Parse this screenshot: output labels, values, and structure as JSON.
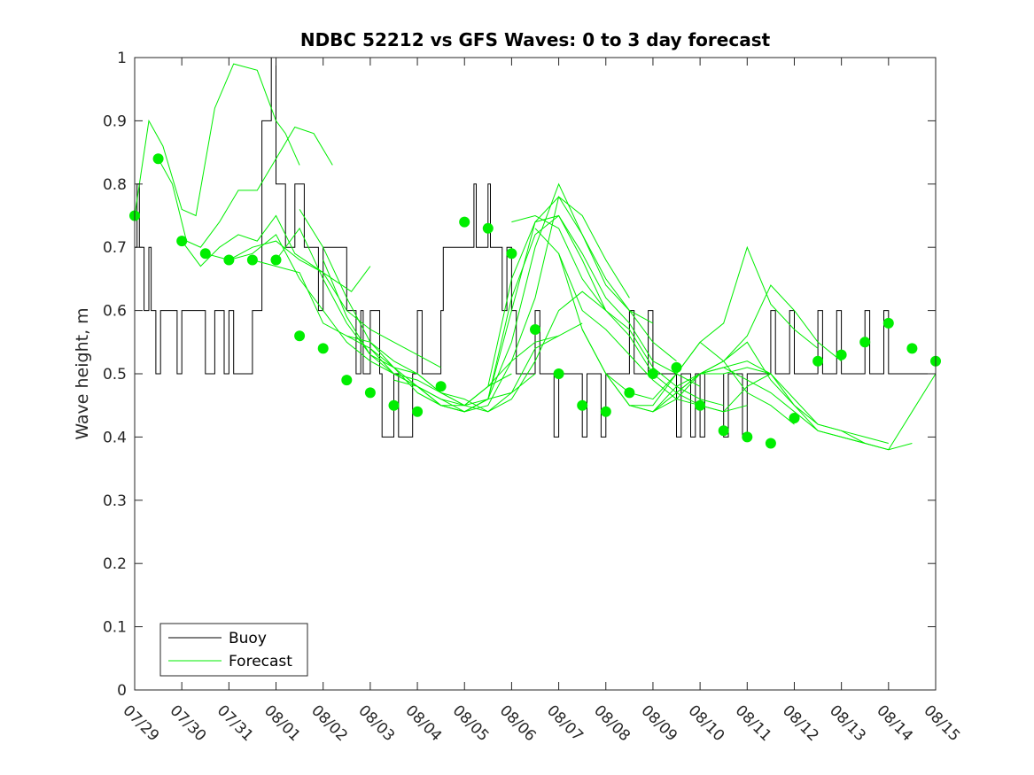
{
  "chart_data": {
    "type": "line",
    "title": "NDBC 52212 vs GFS Waves: 0 to 3 day forecast",
    "xlabel": "",
    "ylabel": "Wave height, m",
    "ylim": [
      0,
      1
    ],
    "xlim": [
      0,
      17
    ],
    "x_unit": "days since 07/29",
    "yticks": [
      0,
      0.1,
      0.2,
      0.3,
      0.4,
      0.5,
      0.6,
      0.7,
      0.8,
      0.9,
      1
    ],
    "ytick_labels": [
      "0",
      "0.1",
      "0.2",
      "0.3",
      "0.4",
      "0.5",
      "0.6",
      "0.7",
      "0.8",
      "0.9",
      "1"
    ],
    "xtick_labels": [
      "07/29",
      "07/30",
      "07/31",
      "08/01",
      "08/02",
      "08/03",
      "08/04",
      "08/05",
      "08/06",
      "08/07",
      "08/08",
      "08/09",
      "08/10",
      "08/11",
      "08/12",
      "08/13",
      "08/14",
      "08/15"
    ],
    "grid": false,
    "legend": {
      "position": "bottom-left",
      "entries": [
        "Buoy",
        "Forecast"
      ]
    },
    "colors": {
      "buoy": "#000000",
      "forecast": "#00ee00"
    },
    "series": [
      {
        "name": "Buoy",
        "style": "stairs",
        "x": [
          0,
          0.05,
          0.1,
          0.2,
          0.3,
          0.35,
          0.45,
          0.55,
          0.9,
          1.0,
          1.5,
          1.7,
          1.9,
          2.0,
          2.1,
          2.5,
          2.7,
          2.9,
          3.0,
          3.2,
          3.4,
          3.6,
          3.9,
          4.0,
          4.5,
          4.7,
          4.8,
          4.85,
          5.0,
          5.2,
          5.25,
          5.5,
          5.6,
          5.9,
          6.0,
          6.1,
          6.5,
          6.55,
          7.2,
          7.25,
          7.5,
          7.55,
          7.8,
          7.9,
          8.0,
          8.1,
          8.5,
          8.6,
          8.9,
          9.0,
          9.5,
          9.6,
          9.9,
          10.0,
          10.5,
          10.6,
          10.9,
          11.0,
          11.5,
          11.6,
          11.8,
          11.9,
          12.0,
          12.1,
          12.5,
          12.6,
          12.9,
          13.0,
          13.5,
          13.6,
          13.9,
          14.0,
          14.5,
          14.6,
          14.9,
          15.0,
          15.5,
          15.6,
          15.9,
          16.0,
          16.5,
          16.6,
          17.0
        ],
        "y": [
          0.7,
          0.8,
          0.7,
          0.6,
          0.7,
          0.6,
          0.5,
          0.6,
          0.5,
          0.6,
          0.5,
          0.6,
          0.5,
          0.6,
          0.5,
          0.6,
          0.9,
          1.0,
          0.8,
          0.7,
          0.8,
          0.7,
          0.6,
          0.7,
          0.6,
          0.5,
          0.6,
          0.5,
          0.6,
          0.5,
          0.4,
          0.5,
          0.4,
          0.5,
          0.6,
          0.5,
          0.6,
          0.7,
          0.8,
          0.7,
          0.8,
          0.7,
          0.6,
          0.7,
          0.6,
          0.5,
          0.6,
          0.5,
          0.4,
          0.5,
          0.4,
          0.5,
          0.4,
          0.5,
          0.6,
          0.5,
          0.6,
          0.5,
          0.4,
          0.5,
          0.4,
          0.5,
          0.4,
          0.5,
          0.4,
          0.5,
          0.4,
          0.5,
          0.6,
          0.5,
          0.6,
          0.5,
          0.6,
          0.5,
          0.6,
          0.5,
          0.6,
          0.5,
          0.6,
          0.5,
          0.5,
          0.5,
          0.5
        ]
      },
      {
        "name": "Forecast",
        "style": "lines",
        "runs": [
          {
            "x": [
              0.0,
              0.3,
              0.6,
              1.0,
              1.3,
              1.7,
              2.1,
              2.6,
              3.0,
              3.2,
              3.5
            ],
            "y": [
              0.75,
              0.9,
              0.86,
              0.76,
              0.75,
              0.92,
              0.99,
              0.98,
              0.9,
              0.88,
              0.83
            ]
          },
          {
            "x": [
              0.5,
              0.8,
              1.1,
              1.4,
              1.8,
              2.2,
              2.6,
              3.0,
              3.4,
              3.8,
              4.2
            ],
            "y": [
              0.84,
              0.8,
              0.71,
              0.7,
              0.74,
              0.79,
              0.79,
              0.84,
              0.89,
              0.88,
              0.83
            ]
          },
          {
            "x": [
              1.0,
              1.4,
              1.8,
              2.2,
              2.6,
              3.0,
              3.4,
              3.8,
              4.2,
              4.6,
              5.0
            ],
            "y": [
              0.71,
              0.67,
              0.7,
              0.72,
              0.71,
              0.75,
              0.69,
              0.67,
              0.65,
              0.63,
              0.67
            ]
          },
          {
            "x": [
              1.5,
              2.0,
              2.5,
              3.0,
              3.5,
              4.0,
              4.5,
              5.0,
              5.5,
              6.0,
              6.5
            ],
            "y": [
              0.69,
              0.68,
              0.7,
              0.71,
              0.68,
              0.66,
              0.6,
              0.57,
              0.55,
              0.53,
              0.51
            ]
          },
          {
            "x": [
              2.0,
              2.5,
              3.0,
              3.5,
              4.0,
              4.5,
              5.0,
              5.5,
              6.0,
              6.5,
              7.0
            ],
            "y": [
              0.68,
              0.69,
              0.72,
              0.65,
              0.6,
              0.55,
              0.52,
              0.5,
              0.48,
              0.46,
              0.44
            ]
          },
          {
            "x": [
              2.5,
              3.0,
              3.5,
              4.0,
              4.5,
              5.0,
              5.5,
              6.0,
              6.5,
              7.0,
              7.5
            ],
            "y": [
              0.68,
              0.67,
              0.66,
              0.58,
              0.56,
              0.54,
              0.5,
              0.49,
              0.47,
              0.45,
              0.46
            ]
          },
          {
            "x": [
              3.0,
              3.5,
              4.0,
              4.5,
              5.0,
              5.5,
              6.0,
              6.5,
              7.0,
              7.5,
              8.0
            ],
            "y": [
              0.68,
              0.73,
              0.65,
              0.58,
              0.53,
              0.51,
              0.47,
              0.45,
              0.45,
              0.48,
              0.5
            ]
          },
          {
            "x": [
              3.5,
              4.0,
              4.5,
              5.0,
              5.5,
              6.0,
              6.5,
              7.0,
              7.5,
              8.0,
              8.5
            ],
            "y": [
              0.76,
              0.7,
              0.62,
              0.55,
              0.51,
              0.48,
              0.45,
              0.44,
              0.46,
              0.47,
              0.5
            ]
          },
          {
            "x": [
              4.0,
              4.5,
              5.0,
              5.5,
              6.0,
              6.5,
              7.0,
              7.5,
              8.0,
              8.5,
              9.0
            ],
            "y": [
              0.68,
              0.59,
              0.53,
              0.5,
              0.48,
              0.46,
              0.45,
              0.48,
              0.52,
              0.55,
              0.56
            ]
          },
          {
            "x": [
              4.5,
              5.0,
              5.5,
              6.0,
              6.5,
              7.0,
              7.5,
              8.0,
              8.5,
              9.0,
              9.5
            ],
            "y": [
              0.56,
              0.55,
              0.52,
              0.5,
              0.47,
              0.46,
              0.44,
              0.47,
              0.54,
              0.56,
              0.58
            ]
          },
          {
            "x": [
              5.0,
              5.5,
              6.0,
              6.5,
              7.0,
              7.5,
              8.0,
              8.5,
              9.0,
              9.5,
              10.0
            ],
            "y": [
              0.54,
              0.51,
              0.5,
              0.47,
              0.45,
              0.44,
              0.46,
              0.52,
              0.6,
              0.63,
              0.6
            ]
          },
          {
            "x": [
              5.5,
              6.0,
              6.5,
              7.0,
              7.5,
              8.0,
              8.5,
              9.0,
              9.5,
              10.0,
              10.5
            ],
            "y": [
              0.49,
              0.48,
              0.45,
              0.44,
              0.45,
              0.52,
              0.62,
              0.78,
              0.75,
              0.68,
              0.62
            ]
          },
          {
            "x": [
              6.0,
              6.5,
              7.0,
              7.5,
              8.0,
              8.5,
              9.0,
              9.5,
              10.0,
              10.5,
              11.0
            ],
            "y": [
              0.47,
              0.45,
              0.44,
              0.46,
              0.55,
              0.7,
              0.8,
              0.72,
              0.65,
              0.6,
              0.58
            ]
          },
          {
            "x": [
              6.5,
              7.0,
              7.5,
              8.0,
              8.5,
              9.0,
              9.5,
              10.0,
              10.5,
              11.0,
              11.5
            ],
            "y": [
              0.45,
              0.44,
              0.46,
              0.6,
              0.74,
              0.78,
              0.72,
              0.64,
              0.6,
              0.55,
              0.52
            ]
          },
          {
            "x": [
              7.0,
              7.5,
              8.0,
              8.5,
              9.0,
              9.5,
              10.0,
              10.5,
              11.0,
              11.5,
              12.0
            ],
            "y": [
              0.44,
              0.46,
              0.62,
              0.72,
              0.75,
              0.69,
              0.62,
              0.58,
              0.52,
              0.5,
              0.48
            ]
          },
          {
            "x": [
              7.5,
              8.0,
              8.5,
              9.0,
              9.5,
              10.0,
              10.5,
              11.0,
              11.5,
              12.0,
              12.5
            ],
            "y": [
              0.48,
              0.65,
              0.74,
              0.75,
              0.68,
              0.6,
              0.57,
              0.51,
              0.48,
              0.46,
              0.45
            ]
          },
          {
            "x": [
              8.0,
              8.5,
              9.0,
              9.5,
              10.0,
              10.5,
              11.0,
              11.5,
              12.0,
              12.5,
              13.0
            ],
            "y": [
              0.74,
              0.75,
              0.73,
              0.65,
              0.6,
              0.56,
              0.5,
              0.47,
              0.45,
              0.44,
              0.45
            ]
          },
          {
            "x": [
              8.5,
              9.0,
              9.5,
              10.0,
              10.5,
              11.0,
              11.5,
              12.0,
              12.5,
              13.0,
              13.5
            ],
            "y": [
              0.73,
              0.69,
              0.6,
              0.57,
              0.53,
              0.49,
              0.46,
              0.45,
              0.44,
              0.48,
              0.5
            ]
          },
          {
            "x": [
              9.0,
              9.5,
              10.0,
              10.5,
              11.0,
              11.5,
              12.0,
              12.5,
              13.0,
              13.5,
              14.0
            ],
            "y": [
              0.69,
              0.57,
              0.5,
              0.47,
              0.46,
              0.5,
              0.55,
              0.52,
              0.47,
              0.45,
              0.42
            ]
          },
          {
            "x": [
              9.5,
              10.0,
              10.5,
              11.0,
              11.5,
              12.0,
              12.5,
              13.0,
              13.5,
              14.0,
              14.5
            ],
            "y": [
              0.57,
              0.5,
              0.45,
              0.45,
              0.5,
              0.55,
              0.58,
              0.7,
              0.61,
              0.57,
              0.54
            ]
          },
          {
            "x": [
              10.0,
              10.5,
              11.0,
              11.5,
              12.0,
              12.5,
              13.0,
              13.5,
              14.0,
              14.5,
              15.0
            ],
            "y": [
              0.5,
              0.45,
              0.44,
              0.48,
              0.5,
              0.52,
              0.56,
              0.64,
              0.6,
              0.55,
              0.52
            ]
          },
          {
            "x": [
              10.5,
              11.0,
              11.5,
              12.0,
              12.5,
              13.0,
              13.5,
              14.0,
              14.5,
              15.0,
              15.5
            ],
            "y": [
              0.45,
              0.44,
              0.46,
              0.5,
              0.52,
              0.55,
              0.49,
              0.45,
              0.42,
              0.41,
              0.39
            ]
          },
          {
            "x": [
              11.0,
              11.5,
              12.0,
              12.5,
              13.0,
              13.5,
              14.0,
              14.5,
              15.0,
              15.5,
              16.0
            ],
            "y": [
              0.44,
              0.47,
              0.5,
              0.51,
              0.52,
              0.5,
              0.46,
              0.42,
              0.41,
              0.4,
              0.39
            ]
          },
          {
            "x": [
              11.5,
              12.0,
              12.5,
              13.0,
              13.5,
              14.0,
              14.5,
              15.0,
              15.5,
              16.0,
              16.5
            ],
            "y": [
              0.47,
              0.5,
              0.5,
              0.51,
              0.5,
              0.45,
              0.41,
              0.4,
              0.39,
              0.38,
              0.39
            ]
          },
          {
            "x": [
              12.0,
              12.5,
              13.0,
              13.5,
              14.0,
              14.5,
              15.0,
              15.5,
              16.0,
              16.5,
              17.0
            ],
            "y": [
              0.5,
              0.51,
              0.49,
              0.47,
              0.44,
              0.41,
              0.4,
              0.39,
              0.38,
              0.44,
              0.5
            ]
          }
        ]
      }
    ],
    "markers": {
      "name": "Forecast",
      "x": [
        0,
        0.5,
        1,
        1.5,
        2,
        2.5,
        3,
        3.5,
        4,
        4.5,
        5,
        5.5,
        6,
        6.5,
        7,
        7.5,
        8,
        8.5,
        9,
        9.5,
        10,
        10.5,
        11,
        11.5,
        12,
        12.5,
        13,
        13.5,
        14,
        14.5,
        15,
        15.5,
        16,
        16.5,
        17
      ],
      "y": [
        0.75,
        0.84,
        0.71,
        0.69,
        0.68,
        0.68,
        0.68,
        0.56,
        0.54,
        0.49,
        0.47,
        0.45,
        0.44,
        0.48,
        0.74,
        0.73,
        0.69,
        0.57,
        0.5,
        0.45,
        0.44,
        0.47,
        0.5,
        0.51,
        0.45,
        0.41,
        0.4,
        0.39,
        0.43,
        0.52,
        0.53,
        0.55,
        0.58,
        0.54,
        0.52
      ]
    }
  }
}
